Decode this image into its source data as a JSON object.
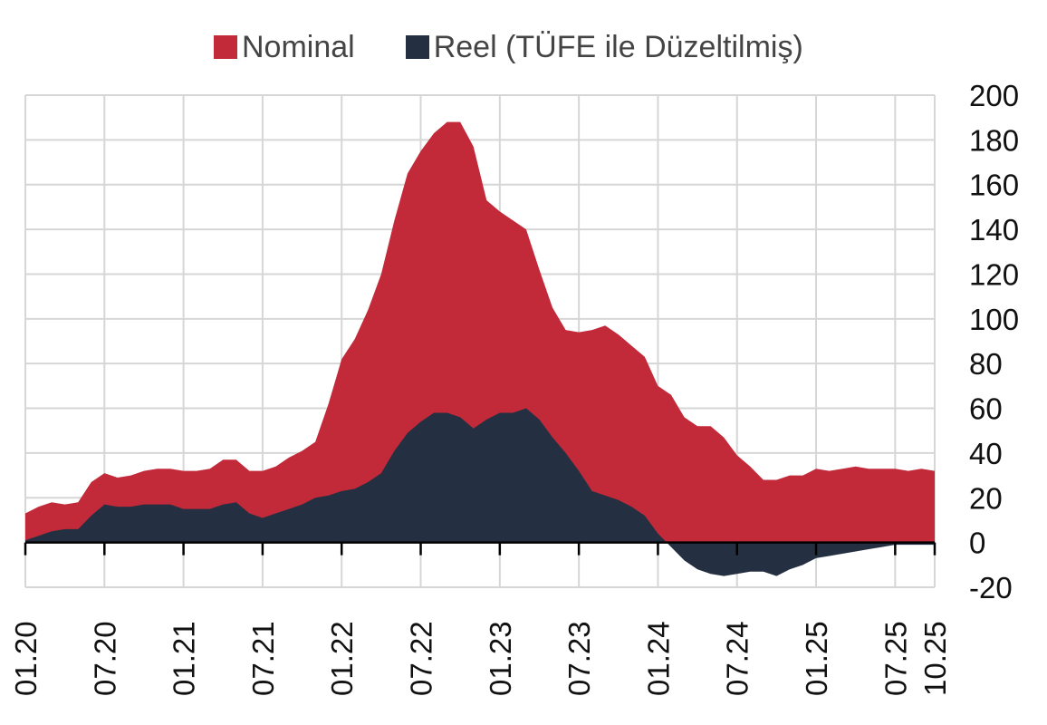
{
  "chart_data": {
    "type": "area",
    "title": "",
    "legend": [
      {
        "name": "Nominal",
        "color": "#c22a3a"
      },
      {
        "name": "Reel (TÜFE ile Düzeltilmiş)",
        "color": "#243042"
      }
    ],
    "ylim": [
      -20,
      200
    ],
    "yticks": [
      200,
      180,
      160,
      140,
      120,
      100,
      80,
      60,
      40,
      20,
      0,
      -20
    ],
    "x_tick_labels": [
      "01.20",
      "07.20",
      "01.21",
      "07.21",
      "01.22",
      "07.22",
      "01.23",
      "07.23",
      "01.24",
      "07.24",
      "01.25",
      "07.25",
      "10.25"
    ],
    "x_tick_months": [
      0,
      6,
      12,
      18,
      24,
      30,
      36,
      42,
      48,
      54,
      60,
      66,
      69
    ],
    "months": 70,
    "series": [
      {
        "name": "Nominal",
        "color": "#c22a3a",
        "values": [
          13,
          16,
          18,
          17,
          18,
          27,
          31,
          29,
          30,
          32,
          33,
          33,
          32,
          32,
          33,
          37,
          37,
          32,
          32,
          34,
          38,
          41,
          45,
          62,
          82,
          91,
          104,
          120,
          144,
          165,
          175,
          183,
          188,
          188,
          177,
          153,
          148,
          144,
          140,
          122,
          105,
          95,
          94,
          95,
          97,
          93,
          88,
          83,
          70,
          66,
          56,
          52,
          52,
          47,
          39,
          34,
          28,
          28,
          30,
          30,
          33,
          32,
          33,
          34,
          33,
          33,
          33,
          32,
          33,
          32
        ]
      },
      {
        "name": "Reel (TÜFE ile Düzeltilmiş)",
        "color": "#243042",
        "values": [
          1,
          3,
          5,
          6,
          6,
          12,
          17,
          16,
          16,
          17,
          17,
          17,
          15,
          15,
          15,
          17,
          18,
          13,
          11,
          13,
          15,
          17,
          20,
          21,
          23,
          24,
          27,
          31,
          41,
          49,
          54,
          58,
          58,
          56,
          51,
          55,
          58,
          58,
          60,
          55,
          47,
          40,
          32,
          23,
          21,
          19,
          16,
          12,
          4,
          -2,
          -8,
          -12,
          -14,
          -15,
          -14,
          -13,
          -13,
          -15,
          -12,
          -10,
          -7,
          -6,
          -5,
          -4,
          -3,
          -2,
          -1,
          -1,
          -1,
          -1
        ]
      }
    ]
  }
}
